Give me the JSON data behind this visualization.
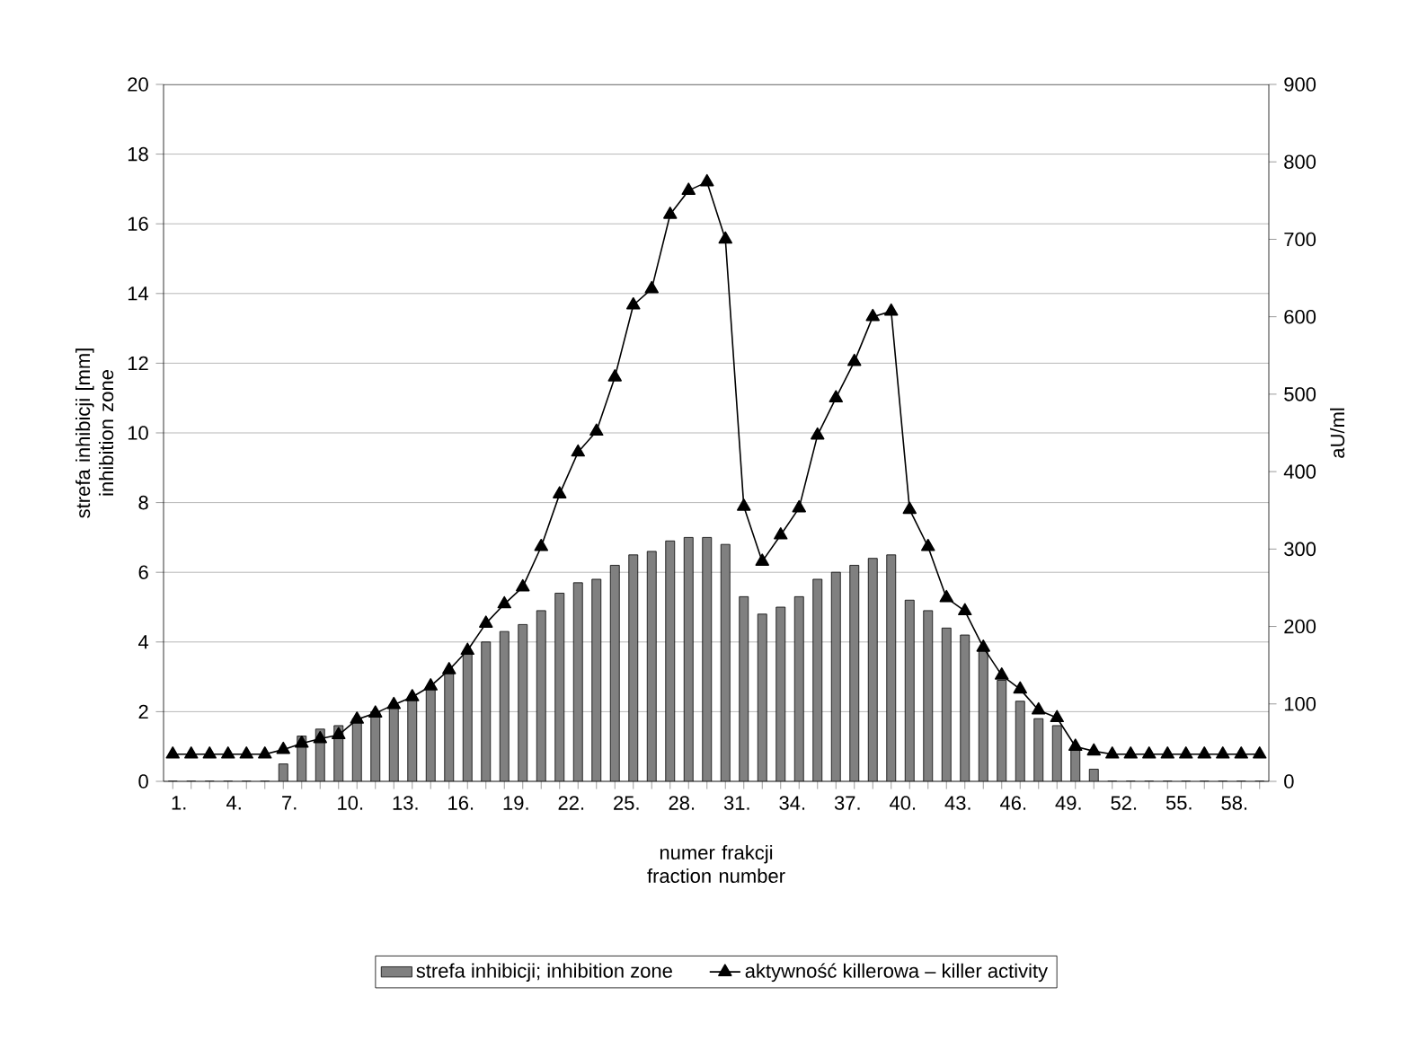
{
  "chart_data": {
    "type": "bar",
    "xlabel": "numer frakcji fraction number",
    "ylabel": "strefa inhibicji [mm] inhibition zone",
    "y2label": "aU/ml",
    "categories": [
      "1.",
      null,
      null,
      "4.",
      null,
      null,
      "7.",
      null,
      null,
      "10.",
      null,
      null,
      "13.",
      null,
      null,
      "16.",
      null,
      null,
      "19.",
      null,
      null,
      "22.",
      null,
      null,
      "25.",
      null,
      null,
      "28.",
      null,
      null,
      "31.",
      null,
      null,
      "34.",
      null,
      null,
      "37.",
      null,
      null,
      "40.",
      null,
      null,
      "43.",
      null,
      null,
      "46.",
      null,
      null,
      "49.",
      null,
      null,
      "52.",
      null,
      null,
      "55.",
      null,
      null,
      "58.",
      null,
      null
    ],
    "series": [
      {
        "name": "strefa inhibicji; inhibition zone",
        "color": "#808080",
        "values": [
          0,
          0,
          0,
          0,
          0,
          0,
          0.5,
          1.3,
          1.5,
          1.6,
          1.8,
          2.0,
          2.2,
          2.4,
          2.7,
          3.1,
          3.7,
          4.0,
          4.3,
          4.5,
          4.9,
          5.4,
          5.7,
          5.8,
          6.2,
          6.5,
          6.6,
          6.9,
          7.0,
          7.0,
          6.8,
          5.3,
          4.8,
          5.0,
          5.3,
          5.8,
          6.0,
          6.2,
          6.4,
          6.5,
          5.2,
          4.9,
          4.4,
          4.2,
          3.8,
          2.9,
          2.3,
          1.8,
          1.6,
          0.9,
          0.35,
          0,
          0,
          0,
          0,
          0,
          0,
          0,
          0,
          0
        ]
      },
      {
        "name": "aktywność killerowa – killer activity",
        "type": "line",
        "axis": "y2",
        "color": "#000000",
        "marker": "triangle",
        "values": [
          35,
          35,
          35,
          35,
          35,
          35,
          41,
          49,
          55,
          60,
          80,
          88,
          99,
          109,
          123,
          144,
          169,
          204,
          229,
          251,
          303,
          371,
          425,
          452,
          522,
          615,
          636,
          732,
          763,
          774,
          700,
          355,
          284,
          318,
          353,
          447,
          495,
          542,
          600,
          607,
          351,
          303,
          237,
          220,
          173,
          137,
          119,
          92,
          82,
          45,
          39,
          35,
          35,
          35,
          35,
          35,
          35,
          35,
          35,
          35
        ]
      }
    ],
    "ylim": [
      0,
      20
    ],
    "yticks": [
      0,
      2,
      4,
      6,
      8,
      10,
      12,
      14,
      16,
      18,
      20
    ],
    "y2lim": [
      0,
      900
    ],
    "y2ticks": [
      0,
      100,
      200,
      300,
      400,
      500,
      600,
      700,
      800,
      900
    ],
    "grid": "y",
    "legend": "bottom"
  }
}
